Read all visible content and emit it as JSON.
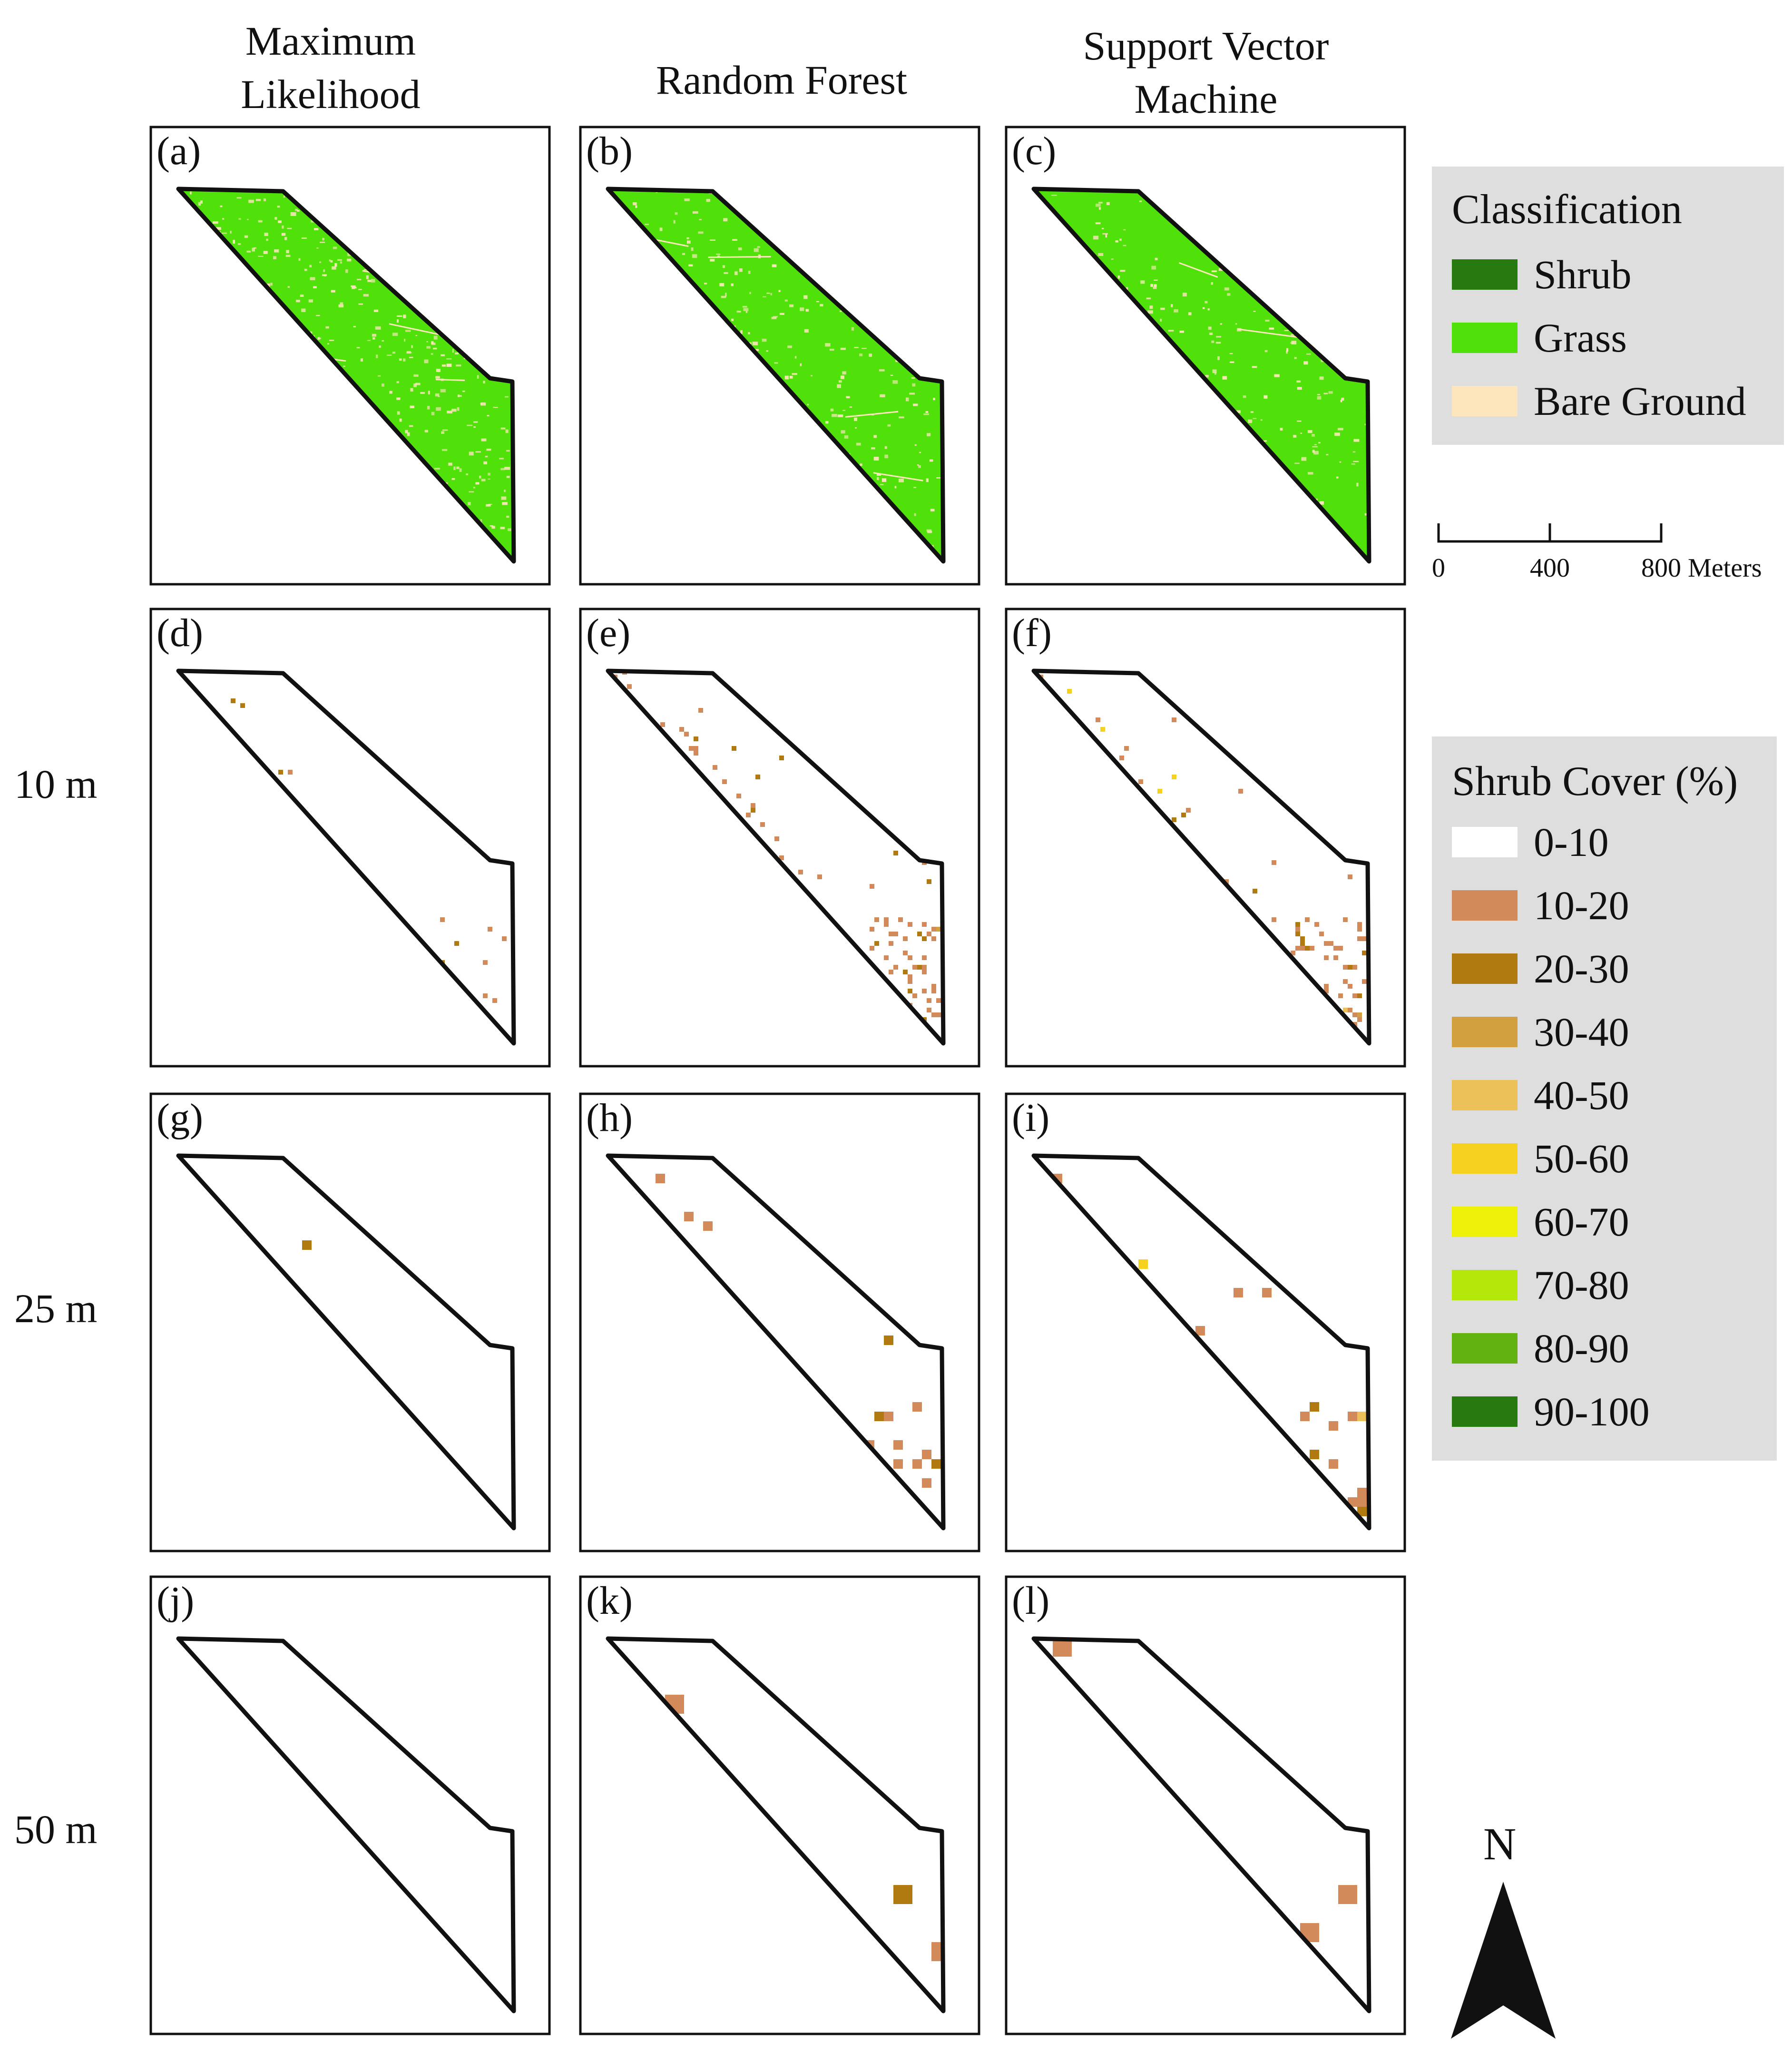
{
  "column_headers": [
    {
      "lines": [
        "Maximum",
        "Likelihood"
      ]
    },
    {
      "lines": [
        "Random Forest"
      ]
    },
    {
      "lines": [
        "Support Vector",
        "Machine"
      ]
    }
  ],
  "row_labels": [
    "10 m",
    "25 m",
    "50 m"
  ],
  "panels": [
    {
      "label": "(a)",
      "method": "Maximum Likelihood",
      "resolution": "classification",
      "kind": "class",
      "grass": "#51e10a",
      "bare": "#fde6bc",
      "bare_density": 0.9
    },
    {
      "label": "(b)",
      "method": "Random Forest",
      "resolution": "classification",
      "kind": "class",
      "grass": "#51e10a",
      "bare": "#fde6bc",
      "bare_density": 0.55
    },
    {
      "label": "(c)",
      "method": "Support Vector Machine",
      "resolution": "classification",
      "kind": "class",
      "grass": "#51e10a",
      "bare": "#fde6bc",
      "bare_density": 0.45
    },
    {
      "label": "(d)",
      "method": "Maximum Likelihood",
      "resolution": "10 m",
      "kind": "cover",
      "cell_m": 10,
      "density": 0.06
    },
    {
      "label": "(e)",
      "method": "Random Forest",
      "resolution": "10 m",
      "kind": "cover",
      "cell_m": 10,
      "density": 0.55
    },
    {
      "label": "(f)",
      "method": "Support Vector Machine",
      "resolution": "10 m",
      "kind": "cover",
      "cell_m": 10,
      "density": 0.5
    },
    {
      "label": "(g)",
      "method": "Maximum Likelihood",
      "resolution": "25 m",
      "kind": "cover",
      "cell_m": 25,
      "density": 0.05
    },
    {
      "label": "(h)",
      "method": "Random Forest",
      "resolution": "25 m",
      "kind": "cover",
      "cell_m": 25,
      "density": 0.45
    },
    {
      "label": "(i)",
      "method": "Support Vector Machine",
      "resolution": "25 m",
      "kind": "cover",
      "cell_m": 25,
      "density": 0.4
    },
    {
      "label": "(j)",
      "method": "Maximum Likelihood",
      "resolution": "50 m",
      "kind": "cover",
      "cell_m": 50,
      "density": 0.0
    },
    {
      "label": "(k)",
      "method": "Random Forest",
      "resolution": "50 m",
      "kind": "cover",
      "cell_m": 50,
      "density": 0.45
    },
    {
      "label": "(l)",
      "method": "Support Vector Machine",
      "resolution": "50 m",
      "kind": "cover",
      "cell_m": 50,
      "density": 0.3
    }
  ],
  "classification_legend": {
    "title": "Classification",
    "items": [
      {
        "label": "Shrub",
        "color": "#267a0f"
      },
      {
        "label": "Grass",
        "color": "#51e10a"
      },
      {
        "label": "Bare Ground",
        "color": "#fde6bc"
      }
    ]
  },
  "scale_bar": {
    "ticks": [
      "0",
      "400",
      "800 Meters"
    ]
  },
  "shrub_cover_legend": {
    "title": "Shrub Cover (%)",
    "items": [
      {
        "label": "0-10",
        "color": "#ffffff"
      },
      {
        "label": "10-20",
        "color": "#d38a5b"
      },
      {
        "label": "20-30",
        "color": "#b07a10"
      },
      {
        "label": "30-40",
        "color": "#d3a040"
      },
      {
        "label": "40-50",
        "color": "#ecc159"
      },
      {
        "label": "50-60",
        "color": "#f7d120"
      },
      {
        "label": "60-70",
        "color": "#eef10a"
      },
      {
        "label": "70-80",
        "color": "#b4e80a"
      },
      {
        "label": "80-90",
        "color": "#62b210"
      },
      {
        "label": "90-100",
        "color": "#267a0f"
      }
    ]
  },
  "north_arrow": {
    "label": "N"
  }
}
